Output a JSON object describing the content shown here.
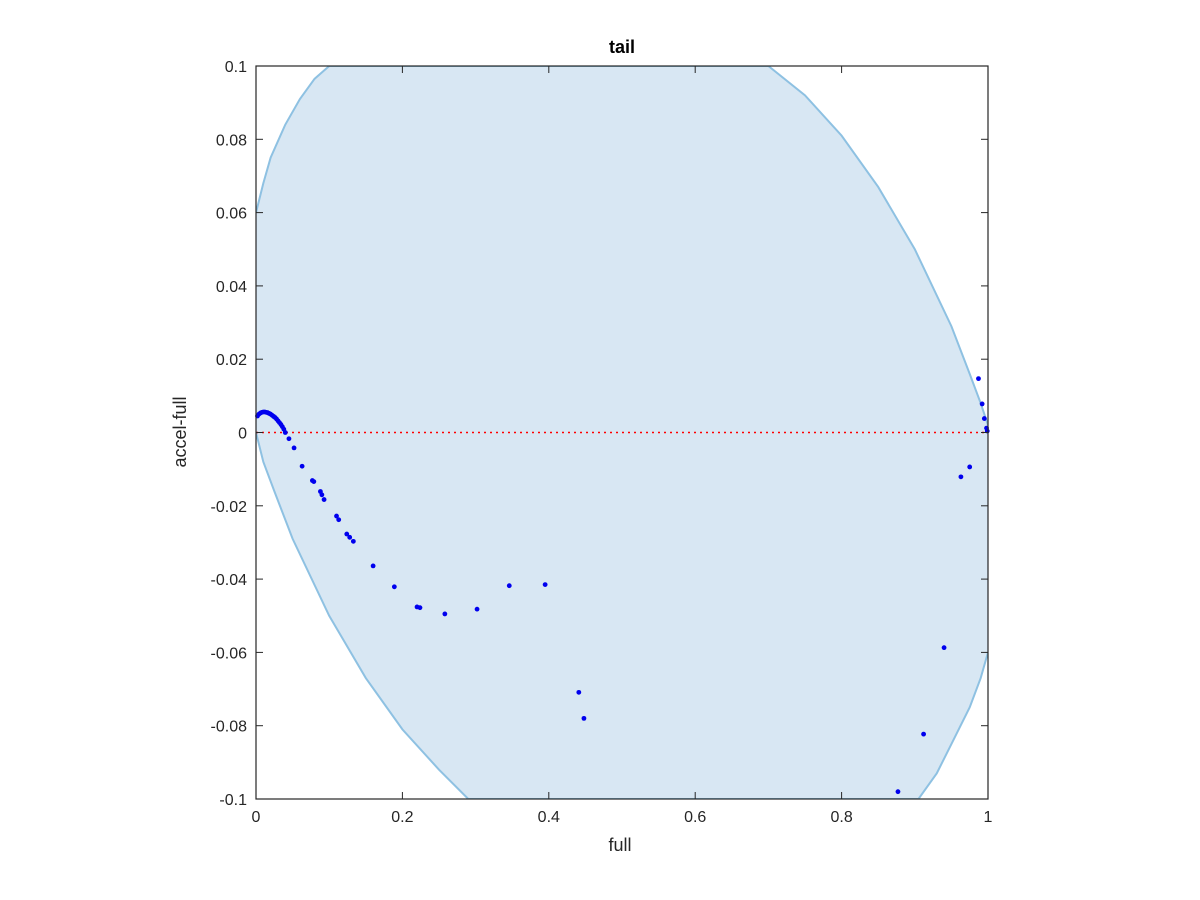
{
  "chart_data": {
    "type": "scatter",
    "title": "tail",
    "xlabel": "full",
    "ylabel": "accel-full",
    "xlim": [
      0,
      1
    ],
    "ylim": [
      -0.1,
      0.1
    ],
    "x_ticks": [
      0,
      0.2,
      0.4,
      0.6,
      0.8,
      1
    ],
    "x_tick_labels": [
      "0",
      "0.2",
      "0.4",
      "0.6",
      "0.8",
      "1"
    ],
    "y_ticks": [
      -0.1,
      -0.08,
      -0.06,
      -0.04,
      -0.02,
      0,
      0.02,
      0.04,
      0.06,
      0.08,
      0.1
    ],
    "y_tick_labels": [
      "-0.1",
      "-0.08",
      "-0.06",
      "-0.04",
      "-0.02",
      "0",
      "0.02",
      "0.04",
      "0.06",
      "0.08",
      "0.1"
    ],
    "grid": false,
    "colors": {
      "points": "#0000ee",
      "region_fill": "#d8e7f3",
      "region_edge": "#8ec1e2",
      "reference_line": "#ff0000",
      "axes": "#262626"
    },
    "reference_line": {
      "y": 0,
      "style": "dotted"
    },
    "region": {
      "upper_boundary": [
        [
          0,
          0.06
        ],
        [
          0.01,
          0.068
        ],
        [
          0.02,
          0.075
        ],
        [
          0.04,
          0.084
        ],
        [
          0.06,
          0.091
        ],
        [
          0.08,
          0.0965
        ],
        [
          0.1,
          0.1
        ],
        [
          0.7,
          0.1
        ],
        [
          0.75,
          0.092
        ],
        [
          0.8,
          0.081
        ],
        [
          0.85,
          0.067
        ],
        [
          0.9,
          0.05
        ],
        [
          0.95,
          0.029
        ],
        [
          0.975,
          0.016
        ],
        [
          0.99,
          0.008
        ],
        [
          1,
          0.002
        ]
      ],
      "lower_boundary": [
        [
          0,
          0
        ],
        [
          0.01,
          -0.008
        ],
        [
          0.025,
          -0.016
        ],
        [
          0.05,
          -0.029
        ],
        [
          0.1,
          -0.05
        ],
        [
          0.15,
          -0.067
        ],
        [
          0.2,
          -0.081
        ],
        [
          0.25,
          -0.092
        ],
        [
          0.29,
          -0.1
        ],
        [
          0.905,
          -0.1
        ],
        [
          0.93,
          -0.093
        ],
        [
          0.95,
          -0.085
        ],
        [
          0.975,
          -0.075
        ],
        [
          0.99,
          -0.067
        ],
        [
          1,
          -0.06
        ]
      ]
    },
    "series": [
      {
        "points": [
          [
            0.002,
            0.0045
          ],
          [
            0.004,
            0.005
          ],
          [
            0.006,
            0.0053
          ],
          [
            0.008,
            0.0055
          ],
          [
            0.01,
            0.0056
          ],
          [
            0.012,
            0.0056
          ],
          [
            0.014,
            0.0055
          ],
          [
            0.016,
            0.0054
          ],
          [
            0.018,
            0.0052
          ],
          [
            0.02,
            0.005
          ],
          [
            0.022,
            0.0047
          ],
          [
            0.024,
            0.0044
          ],
          [
            0.026,
            0.0041
          ],
          [
            0.028,
            0.0037
          ],
          [
            0.03,
            0.0032
          ],
          [
            0.032,
            0.0027
          ],
          [
            0.034,
            0.0022
          ],
          [
            0.036,
            0.0016
          ],
          [
            0.038,
            0.0009
          ],
          [
            0.04,
            0.0
          ],
          [
            0.045,
            -0.0017
          ],
          [
            0.052,
            -0.0042
          ],
          [
            0.063,
            -0.0092
          ],
          [
            0.077,
            -0.0131
          ],
          [
            0.079,
            -0.0134
          ],
          [
            0.088,
            -0.0161
          ],
          [
            0.09,
            -0.017
          ],
          [
            0.093,
            -0.0183
          ],
          [
            0.11,
            -0.0228
          ],
          [
            0.113,
            -0.0238
          ],
          [
            0.124,
            -0.0277
          ],
          [
            0.128,
            -0.0286
          ],
          [
            0.133,
            -0.0297
          ],
          [
            0.16,
            -0.0364
          ],
          [
            0.189,
            -0.0421
          ],
          [
            0.22,
            -0.0476
          ],
          [
            0.224,
            -0.0478
          ],
          [
            0.258,
            -0.0495
          ],
          [
            0.302,
            -0.0482
          ],
          [
            0.346,
            -0.0418
          ],
          [
            0.395,
            -0.0415
          ],
          [
            0.441,
            -0.0709
          ],
          [
            0.448,
            -0.078
          ],
          [
            0.877,
            -0.098
          ],
          [
            0.912,
            -0.0823
          ],
          [
            0.94,
            -0.0587
          ],
          [
            0.963,
            -0.0121
          ],
          [
            0.975,
            -0.0094
          ],
          [
            0.987,
            0.0147
          ],
          [
            0.992,
            0.0078
          ],
          [
            0.995,
            0.0038
          ],
          [
            0.998,
            0.0012
          ],
          [
            0.999,
            0.0004
          ]
        ]
      }
    ]
  }
}
